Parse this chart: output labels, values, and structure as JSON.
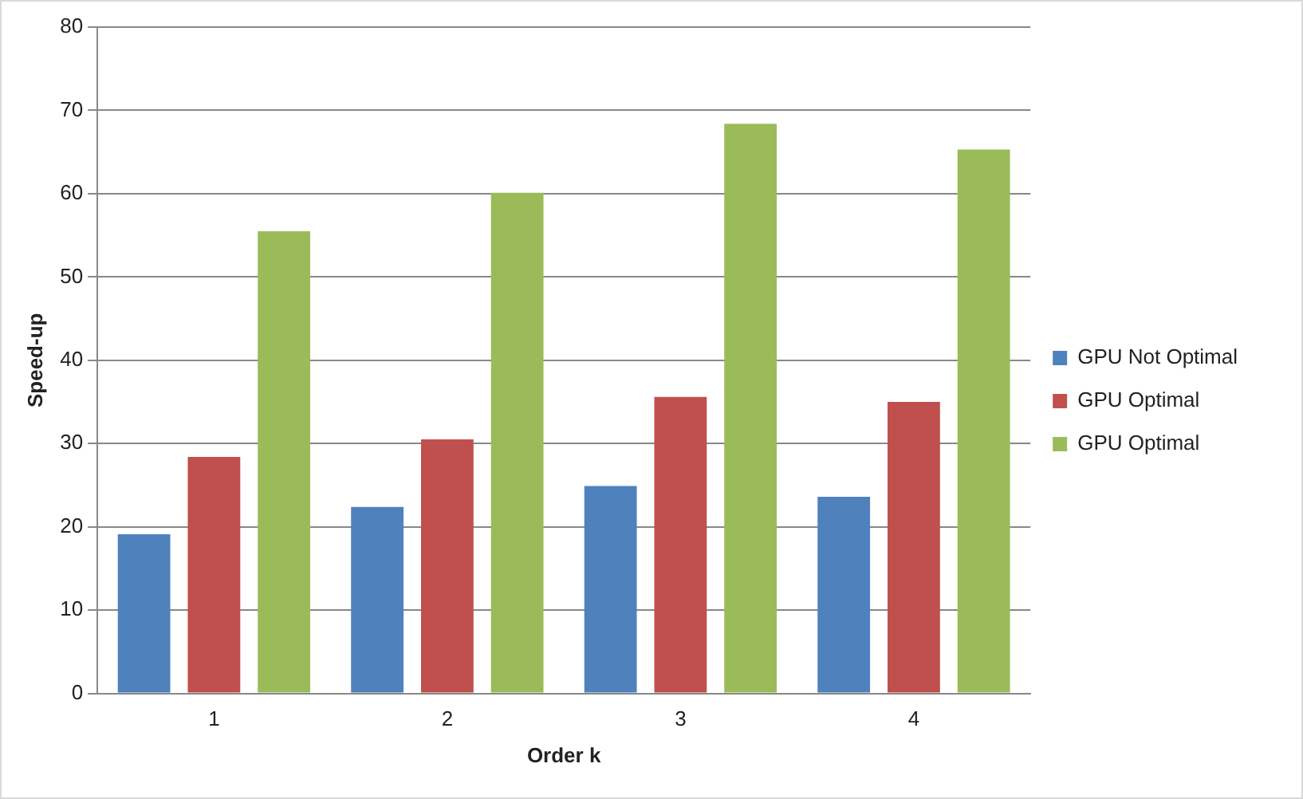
{
  "chart_data": {
    "type": "bar",
    "xlabel": "Order k",
    "ylabel": "Speed-up",
    "categories": [
      "1",
      "2",
      "3",
      "4"
    ],
    "series": [
      {
        "name": "GPU Not Optimal",
        "color": "#4f81bd",
        "values": [
          19.1,
          22.4,
          24.9,
          23.6
        ]
      },
      {
        "name": "GPU Optimal",
        "color": "#c0504d",
        "values": [
          28.4,
          30.5,
          35.6,
          35.0
        ]
      },
      {
        "name": "GPU Optimal",
        "color": "#9bbb59",
        "values": [
          55.5,
          60.1,
          68.4,
          65.3
        ]
      }
    ],
    "ylim": [
      0,
      80
    ],
    "yticks": [
      0,
      10,
      20,
      30,
      40,
      50,
      60,
      70,
      80
    ],
    "grid": "y",
    "legend": "right"
  }
}
